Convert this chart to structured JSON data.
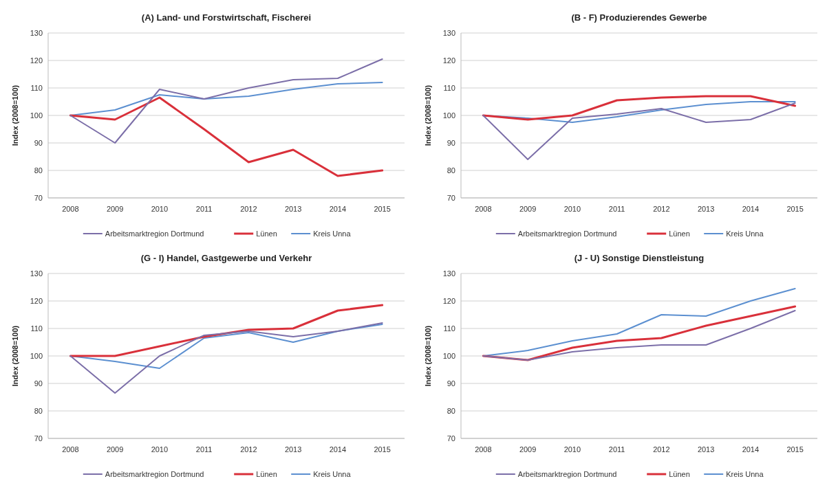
{
  "chart_data": [
    {
      "type": "line",
      "title": "(A) Land- und Forstwirtschaft, Fischerei",
      "ylabel": "Index (2008=100)",
      "categories": [
        "2008",
        "2009",
        "2010",
        "2011",
        "2012",
        "2013",
        "2014",
        "2015"
      ],
      "ylim": [
        70,
        130
      ],
      "yticks": [
        70,
        80,
        90,
        100,
        110,
        120,
        130
      ],
      "grid": "y",
      "legend": "bottom",
      "line_style": "solid",
      "series": [
        {
          "name": "Arbeitsmarktregion Dortmund",
          "color": "#7b6ea8",
          "values": [
            100,
            90,
            109.5,
            106,
            110,
            113,
            113.5,
            120.5
          ]
        },
        {
          "name": "Lünen",
          "color": "#d9303a",
          "values": [
            100,
            98.5,
            106.5,
            95,
            83,
            87.5,
            78,
            80
          ]
        },
        {
          "name": "Kreis Unna",
          "color": "#5b8fd0",
          "values": [
            100,
            102,
            107.5,
            106,
            107,
            109.5,
            111.5,
            112
          ]
        }
      ]
    },
    {
      "type": "line",
      "title": "(B - F) Produzierendes Gewerbe",
      "ylabel": "Index (2008=100)",
      "categories": [
        "2008",
        "2009",
        "2010",
        "2011",
        "2012",
        "2013",
        "2014",
        "2015"
      ],
      "ylim": [
        70,
        130
      ],
      "yticks": [
        70,
        80,
        90,
        100,
        110,
        120,
        130
      ],
      "grid": "y",
      "legend": "bottom",
      "line_style": "solid",
      "series": [
        {
          "name": "Arbeitsmarktregion Dortmund",
          "color": "#7b6ea8",
          "values": [
            100,
            84,
            99,
            100.5,
            102.5,
            97.5,
            98.5,
            104.5
          ]
        },
        {
          "name": "Lünen",
          "color": "#d9303a",
          "values": [
            100,
            98.5,
            100,
            105.5,
            106.5,
            107,
            107,
            103.5
          ]
        },
        {
          "name": "Kreis Unna",
          "color": "#5b8fd0",
          "values": [
            100,
            99,
            97.5,
            99.5,
            102,
            104,
            105,
            105
          ]
        }
      ]
    },
    {
      "type": "line",
      "title": "(G - I) Handel, Gastgewerbe und Verkehr",
      "ylabel": "Index (2008=100)",
      "categories": [
        "2008",
        "2009",
        "2010",
        "2011",
        "2012",
        "2013",
        "2014",
        "2015"
      ],
      "ylim": [
        70,
        130
      ],
      "yticks": [
        70,
        80,
        90,
        100,
        110,
        120,
        130
      ],
      "grid": "y",
      "legend": "bottom",
      "line_style": "solid",
      "series": [
        {
          "name": "Arbeitsmarktregion Dortmund",
          "color": "#7b6ea8",
          "values": [
            100,
            86.5,
            100,
            107.5,
            109,
            107,
            109,
            112
          ]
        },
        {
          "name": "Lünen",
          "color": "#d9303a",
          "values": [
            100,
            100,
            103.5,
            107,
            109.5,
            110,
            116.5,
            118.5
          ]
        },
        {
          "name": "Kreis Unna",
          "color": "#5b8fd0",
          "values": [
            100,
            98,
            95.5,
            106.5,
            108.5,
            105,
            109,
            111.5
          ]
        }
      ]
    },
    {
      "type": "line",
      "title": "(J - U) Sonstige Dienstleistung",
      "ylabel": "Index (2008=100)",
      "categories": [
        "2008",
        "2009",
        "2010",
        "2011",
        "2012",
        "2013",
        "2014",
        "2015"
      ],
      "ylim": [
        70,
        130
      ],
      "yticks": [
        70,
        80,
        90,
        100,
        110,
        120,
        130
      ],
      "grid": "y",
      "legend": "bottom",
      "line_style": "solid",
      "series": [
        {
          "name": "Arbeitsmarktregion Dortmund",
          "color": "#7b6ea8",
          "values": [
            100,
            98.5,
            101.5,
            103,
            104,
            104,
            110,
            116.5
          ]
        },
        {
          "name": "Lünen",
          "color": "#d9303a",
          "values": [
            100,
            98.5,
            103,
            105.5,
            106.5,
            111,
            114.5,
            118
          ]
        },
        {
          "name": "Kreis Unna",
          "color": "#5b8fd0",
          "values": [
            100,
            102,
            105.5,
            108,
            115,
            114.5,
            120,
            124.5
          ]
        }
      ]
    }
  ]
}
